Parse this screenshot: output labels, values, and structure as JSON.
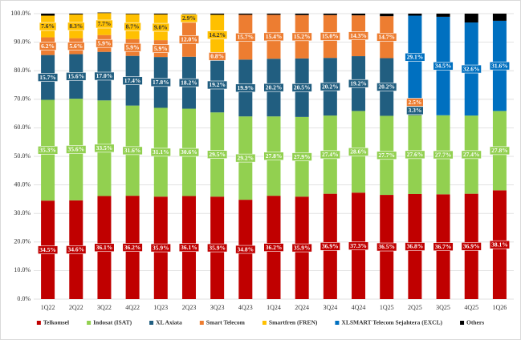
{
  "chart_data": {
    "type": "bar",
    "stacked": true,
    "categories": [
      "1Q22",
      "2Q22",
      "3Q22",
      "4Q22",
      "1Q23",
      "2Q23",
      "3Q23",
      "4Q23",
      "1Q24",
      "2Q24",
      "3Q24",
      "4Q24",
      "1Q25",
      "2Q25",
      "3Q25",
      "4Q25",
      "1Q26"
    ],
    "ylim": [
      0,
      100
    ],
    "yticks": [
      {
        "value": 0,
        "label": "0.0%"
      },
      {
        "value": 10,
        "label": "10.0%"
      },
      {
        "value": 20,
        "label": "20.0%"
      },
      {
        "value": 30,
        "label": "30.0%"
      },
      {
        "value": 40,
        "label": "40.0%"
      },
      {
        "value": 50,
        "label": "50.0%"
      },
      {
        "value": 60,
        "label": "60.0%"
      },
      {
        "value": 70,
        "label": "70.0%"
      },
      {
        "value": 80,
        "label": "80.0%"
      },
      {
        "value": 90,
        "label": "90.0%"
      },
      {
        "value": 100,
        "label": "100.0%"
      }
    ],
    "legend": "bottom",
    "series": [
      {
        "name": "Telkomsel",
        "color": "#c00000",
        "label_color": "#ffffff",
        "values": [
          34.5,
          34.6,
          36.1,
          36.2,
          35.9,
          36.1,
          35.9,
          34.8,
          36.2,
          35.9,
          36.9,
          37.3,
          36.5,
          36.8,
          36.7,
          36.9,
          38.1
        ],
        "value_labels": [
          "34.5%",
          "34.6%",
          "36.1%",
          "36.2%",
          "35.9%",
          "36.1%",
          "35.9%",
          "34.8%",
          "36.2%",
          "35.9%",
          "36.9%",
          "37.3%",
          "36.5%",
          "36.8%",
          "36.7%",
          "36.9%",
          "38.1%"
        ]
      },
      {
        "name": "Indosat (ISAT)",
        "color": "#92d050",
        "label_color": "#ffffff",
        "values": [
          35.3,
          35.6,
          33.5,
          31.6,
          31.1,
          30.6,
          29.5,
          29.2,
          27.8,
          27.9,
          27.4,
          28.6,
          27.7,
          27.6,
          27.7,
          27.4,
          27.8
        ],
        "value_labels": [
          "35.3%",
          "35.6%",
          "33.5%",
          "31.6%",
          "31.1%",
          "30.6%",
          "29.5%",
          "29.2%",
          "27.8%",
          "27.9%",
          "27.4%",
          "28.6%",
          "27.7%",
          "27.6%",
          "27.7%",
          "27.4%",
          "27.8%"
        ]
      },
      {
        "name": "XL Axiata",
        "color": "#215e80",
        "label_color": "#ffffff",
        "values": [
          15.7,
          15.6,
          17.0,
          17.4,
          17.8,
          18.2,
          19.2,
          19.9,
          20.2,
          20.5,
          20.2,
          19.2,
          20.2,
          3.3,
          null,
          null,
          null
        ],
        "value_labels": [
          "15.7%",
          "15.6%",
          "17.0%",
          "17.4%",
          "17.8%",
          "18.2%",
          "19.2%",
          "19.9%",
          "20.2%",
          "20.5%",
          "20.2%",
          "19.2%",
          "20.2%",
          "3.3%",
          null,
          null,
          null
        ]
      },
      {
        "name": "Smart Telecom",
        "color": "#ed7d31",
        "label_color": "#ffffff",
        "values": [
          6.2,
          5.6,
          5.9,
          5.9,
          5.9,
          12.0,
          0.8,
          15.7,
          15.4,
          15.2,
          15.0,
          14.3,
          14.7,
          2.5,
          null,
          null,
          null
        ],
        "value_labels": [
          "6.2%",
          "5.6%",
          "5.9%",
          "5.9%",
          "5.9%",
          "12.0%",
          "0.8%",
          "15.7%",
          "15.4%",
          "15.2%",
          "15.0%",
          "14.3%",
          "14.7%",
          "2.5%",
          null,
          null,
          null
        ]
      },
      {
        "name": "Smartfren (FREN)",
        "color": "#ffc000",
        "label_color": "#333333",
        "values": [
          7.6,
          8.3,
          7.7,
          8.7,
          9.0,
          2.9,
          14.2,
          null,
          null,
          null,
          null,
          null,
          null,
          null,
          null,
          null,
          null
        ],
        "value_labels": [
          "7.6%",
          "8.3%",
          "7.7%",
          "8.7%",
          "9.0%",
          "2.9%",
          "14.2%",
          null,
          null,
          null,
          null,
          null,
          null,
          null,
          null,
          null,
          null
        ]
      },
      {
        "name": "XLSMART Telecom Sejahtera (EXCL)",
        "color": "#0070c0",
        "label_color": "#ffffff",
        "values": [
          null,
          null,
          null,
          null,
          null,
          null,
          null,
          null,
          null,
          null,
          null,
          null,
          null,
          29.1,
          34.5,
          32.6,
          31.6
        ],
        "value_labels": [
          null,
          null,
          null,
          null,
          null,
          null,
          null,
          null,
          null,
          null,
          null,
          null,
          null,
          "29.1%",
          "34.5%",
          "32.6%",
          "31.6%"
        ]
      },
      {
        "name": "Others",
        "color": "#000000",
        "values": [
          0.7,
          0.3,
          0.2,
          0.2,
          0.3,
          0.2,
          0.4,
          0.4,
          0.4,
          0.5,
          0.5,
          0.6,
          0.9,
          0.7,
          1.1,
          3.1,
          2.5
        ]
      }
    ]
  }
}
